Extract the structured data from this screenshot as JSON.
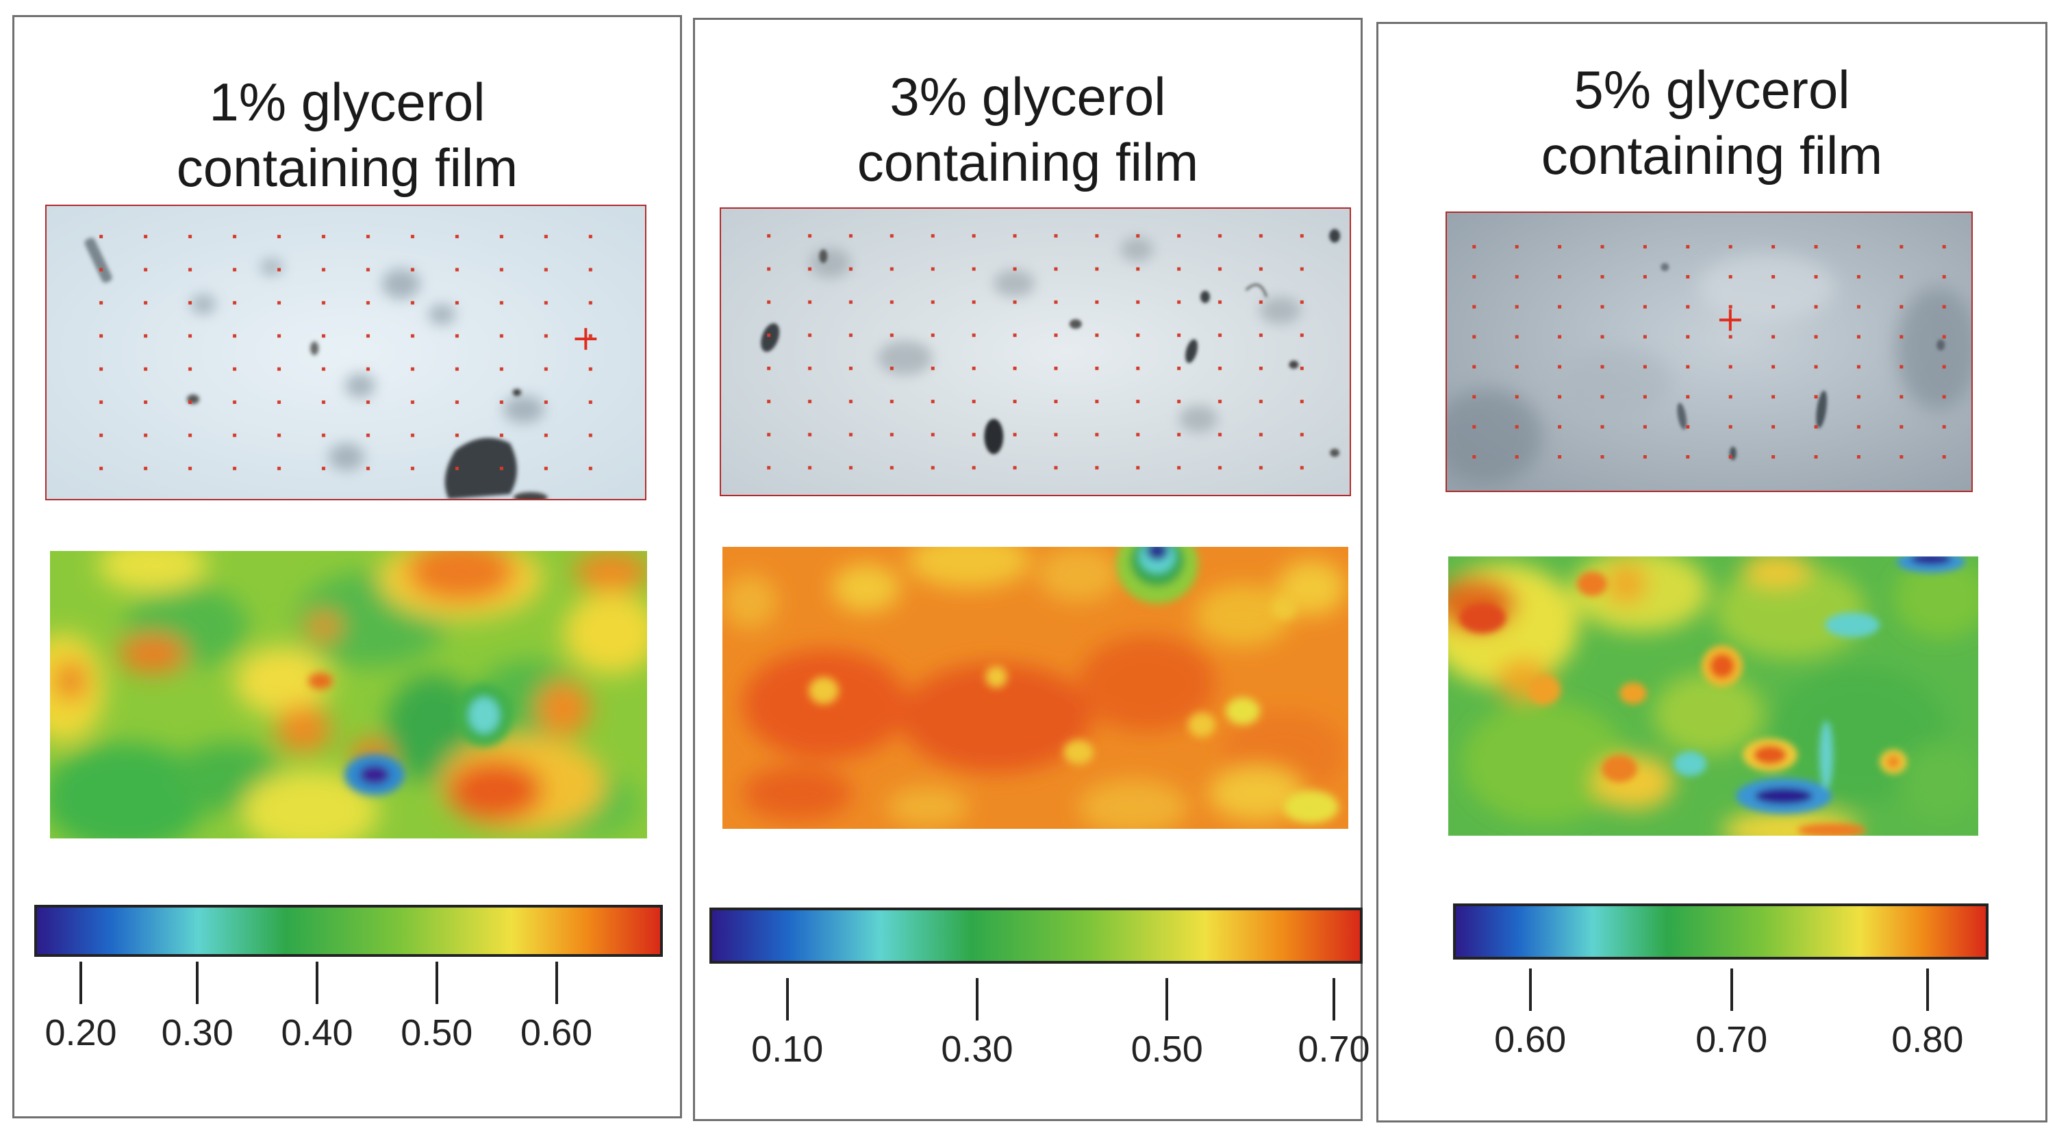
{
  "figure": {
    "panels": [
      {
        "title_line1": "1% glycerol",
        "title_line2": "containing film",
        "colorbar_ticks": [
          "0.20",
          "0.30",
          "0.40",
          "0.50",
          "0.60"
        ],
        "colorbar_tick_fractions": [
          0.075,
          0.26,
          0.45,
          0.64,
          0.83
        ]
      },
      {
        "title_line1": "3% glycerol",
        "title_line2": "containing film",
        "colorbar_ticks": [
          "0.10",
          "0.30",
          "0.50",
          "0.70"
        ],
        "colorbar_tick_fractions": [
          0.12,
          0.41,
          0.7,
          0.955
        ]
      },
      {
        "title_line1": "5% glycerol",
        "title_line2": "containing film",
        "colorbar_ticks": [
          "0.60",
          "0.70",
          "0.80"
        ],
        "colorbar_tick_fractions": [
          0.145,
          0.52,
          0.885
        ]
      }
    ],
    "colors": {
      "grid_marker": "#d43a2a",
      "cross_marker": "#e02a1a",
      "colorbar_stops": [
        "#2d1a8a",
        "#1f68c8",
        "#5fd3d0",
        "#2fa84a",
        "#7cc43a",
        "#f0e040",
        "#f08a18",
        "#d82818"
      ]
    }
  }
}
